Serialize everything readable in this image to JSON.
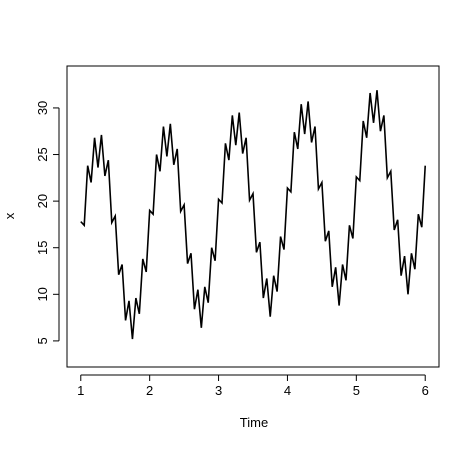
{
  "chart_data": {
    "type": "line",
    "x_label": "Time",
    "y_label": "x",
    "x": [
      1,
      1.05,
      1.1,
      1.15,
      1.2,
      1.25,
      1.3,
      1.35,
      1.4,
      1.45,
      1.5,
      1.55,
      1.6,
      1.65,
      1.7,
      1.75,
      1.8,
      1.85,
      1.9,
      1.95,
      2,
      2.05,
      2.1,
      2.15,
      2.2,
      2.25,
      2.3,
      2.35,
      2.4,
      2.45,
      2.5,
      2.55,
      2.6,
      2.65,
      2.7,
      2.75,
      2.8,
      2.85,
      2.9,
      2.95,
      3,
      3.05,
      3.1,
      3.15,
      3.2,
      3.25,
      3.3,
      3.35,
      3.4,
      3.45,
      3.5,
      3.55,
      3.6,
      3.65,
      3.7,
      3.75,
      3.8,
      3.85,
      3.9,
      3.95,
      4,
      4.05,
      4.1,
      4.15,
      4.2,
      4.25,
      4.3,
      4.35,
      4.4,
      4.45,
      4.5,
      4.55,
      4.6,
      4.65,
      4.7,
      4.75,
      4.8,
      4.85,
      4.9,
      4.95,
      5,
      5.05,
      5.1,
      5.15,
      5.2,
      5.25,
      5.3,
      5.35,
      5.4,
      5.45,
      5.5,
      5.55,
      5.6,
      5.65,
      5.7,
      5.75,
      5.8,
      5.85,
      5.9,
      5.95,
      6
    ],
    "values": [
      17.8,
      17.4,
      23.8,
      22.0,
      26.8,
      23.6,
      27.1,
      22.7,
      24.4,
      17.7,
      18.4,
      12.1,
      13.2,
      7.2,
      9.3,
      5.2,
      9.6,
      7.9,
      13.8,
      12.4,
      19.0,
      18.6,
      25.0,
      23.2,
      28.0,
      24.8,
      28.3,
      23.9,
      25.6,
      18.9,
      19.6,
      13.3,
      14.4,
      8.4,
      10.5,
      6.4,
      10.8,
      9.1,
      15.0,
      13.6,
      20.2,
      19.8,
      26.2,
      24.4,
      29.2,
      26.0,
      29.5,
      25.1,
      26.8,
      20.1,
      20.8,
      14.5,
      15.6,
      9.6,
      11.7,
      7.6,
      12.0,
      10.3,
      16.2,
      14.8,
      21.4,
      21.0,
      27.4,
      25.6,
      30.4,
      27.2,
      30.7,
      26.3,
      28.0,
      21.3,
      22.0,
      15.7,
      16.8,
      10.8,
      12.9,
      8.8,
      13.2,
      11.5,
      17.4,
      16.0,
      22.6,
      22.2,
      28.6,
      26.8,
      31.6,
      28.4,
      31.9,
      27.5,
      29.2,
      22.5,
      23.2,
      16.9,
      18.0,
      12.0,
      14.1,
      10.0,
      14.4,
      12.7,
      18.6,
      17.2,
      23.8
    ],
    "color": "#000000",
    "xlim": [
      0.8,
      6.2
    ],
    "xticks": [
      1,
      2,
      3,
      4,
      5,
      6
    ],
    "ylim": [
      2.2,
      34.5
    ],
    "yticks": [
      5,
      10,
      15,
      20,
      25,
      30
    ]
  }
}
